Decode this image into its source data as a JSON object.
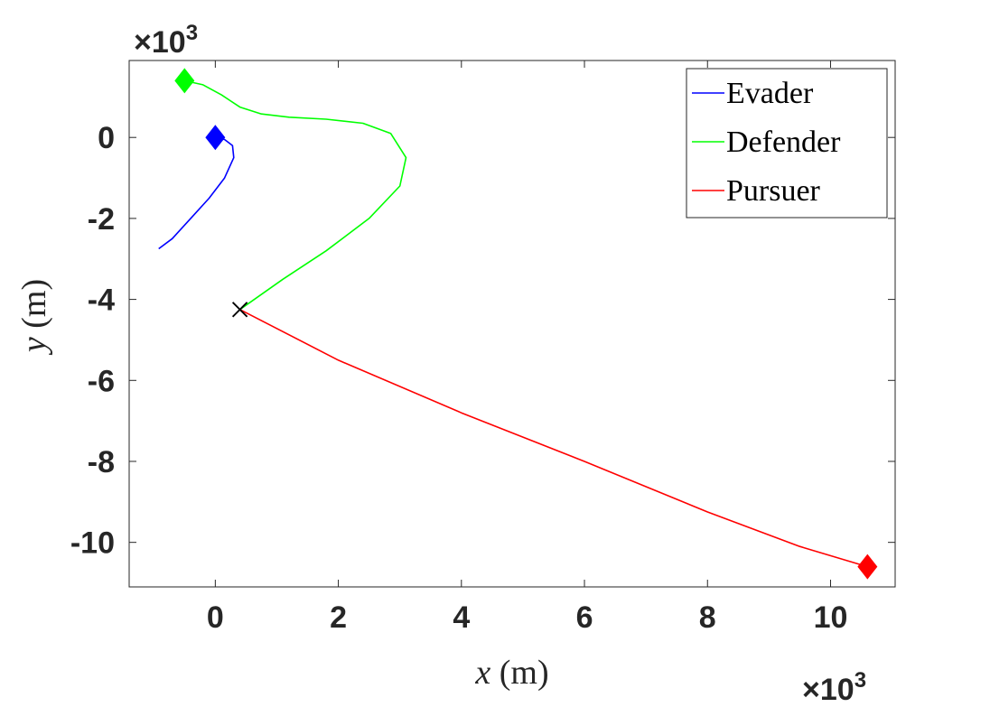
{
  "chart_data": {
    "type": "line",
    "xlabel": "x (m)",
    "ylabel": "y (m)",
    "x_label_var": "x",
    "x_label_unit": " (m)",
    "y_label_var": "y",
    "y_label_unit": " (m)",
    "xlim": [
      -1.4,
      11.05
    ],
    "ylim": [
      -11.1,
      1.9
    ],
    "x_ticks": [
      0,
      2,
      4,
      6,
      8,
      10
    ],
    "x_tick_labels": [
      "0",
      "2",
      "4",
      "6",
      "8",
      "10"
    ],
    "y_ticks": [
      0,
      -2,
      -4,
      -6,
      -8,
      -10
    ],
    "y_tick_labels": [
      "0",
      "-2",
      "-4",
      "-6",
      "-8",
      "-10"
    ],
    "x_multiplier": "×10",
    "x_multiplier_exp": "3",
    "y_multiplier": "×10",
    "y_multiplier_exp": "3",
    "grid": false,
    "legend_position": "top-right",
    "series": [
      {
        "name": "Evader",
        "color": "#0000ff",
        "x": [
          0.0,
          0.15,
          0.28,
          0.3,
          0.15,
          -0.1,
          -0.4,
          -0.7,
          -0.92
        ],
        "y": [
          0.0,
          -0.05,
          -0.2,
          -0.5,
          -1.0,
          -1.5,
          -2.0,
          -2.5,
          -2.75
        ]
      },
      {
        "name": "Defender",
        "color": "#00ff00",
        "x": [
          -0.5,
          -0.2,
          0.1,
          0.4,
          0.75,
          1.2,
          1.8,
          2.4,
          2.85,
          3.1,
          3.0,
          2.5,
          1.8,
          1.1,
          0.4
        ],
        "y": [
          1.4,
          1.3,
          1.05,
          0.75,
          0.58,
          0.5,
          0.45,
          0.35,
          0.1,
          -0.5,
          -1.2,
          -2.0,
          -2.8,
          -3.5,
          -4.25
        ]
      },
      {
        "name": "Pursuer",
        "color": "#ff0000",
        "x": [
          0.4,
          2.0,
          4.0,
          6.0,
          8.0,
          9.5,
          10.6
        ],
        "y": [
          -4.25,
          -5.5,
          -6.8,
          -8.0,
          -9.25,
          -10.1,
          -10.6
        ]
      }
    ],
    "start_markers": [
      {
        "series": "Evader",
        "x": 0.0,
        "y": 0.0,
        "color": "#0000ff"
      },
      {
        "series": "Defender",
        "x": -0.5,
        "y": 1.4,
        "color": "#00ff00"
      },
      {
        "series": "Pursuer",
        "x": 10.6,
        "y": -10.6,
        "color": "#ff0000"
      }
    ],
    "capture_marker": {
      "x": 0.4,
      "y": -4.25,
      "color": "#000000"
    }
  }
}
